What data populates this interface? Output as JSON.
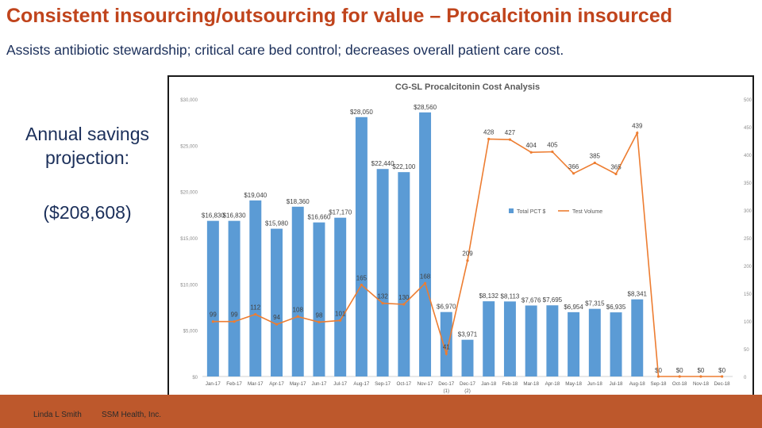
{
  "slide": {
    "title": "Consistent insourcing/outsourcing for value – Procalcitonin insourced",
    "subtitle": "Assists antibiotic stewardship; critical care bed control; decreases overall patient care cost.",
    "savings_label": "Annual savings projection:",
    "savings_value": "($208,608)",
    "footer_author": "Linda L Smith",
    "footer_org": "SSM Health, Inc.",
    "accent_color": "#c0441c",
    "footer_color": "#bd582c"
  },
  "chart_data": {
    "type": "bar",
    "title": "CG-SL Procalcitonin Cost Analysis",
    "categories": [
      "Jan-17",
      "Feb-17",
      "Mar-17",
      "Apr-17",
      "May-17",
      "Jun-17",
      "Jul-17",
      "Aug-17",
      "Sep-17",
      "Oct-17",
      "Nov-17",
      "Dec-17",
      "Dec-17",
      "Jan-18",
      "Feb-18",
      "Mar-18",
      "Apr-18",
      "May-18",
      "Jun-18",
      "Jul-18",
      "Aug-18",
      "Sep-18",
      "Oct-18",
      "Nov-18",
      "Dec-18"
    ],
    "category_notes": [
      "",
      "",
      "",
      "",
      "",
      "",
      "",
      "",
      "",
      "",
      "",
      "(1)",
      "(2)",
      "",
      "",
      "",
      "",
      "",
      "",
      "",
      "",
      "",
      "",
      "",
      ""
    ],
    "series": [
      {
        "name": "Total PCT $",
        "type": "bar",
        "axis": "left",
        "color": "#5b9bd5",
        "values": [
          16830,
          16830,
          19040,
          15980,
          18360,
          16660,
          17170,
          28050,
          22440,
          22100,
          28560,
          6970,
          3971,
          8132,
          8113,
          7676,
          7695,
          6954,
          7315,
          6935,
          8341,
          0,
          0,
          0,
          0
        ],
        "labels": [
          "$16,830",
          "$16,830",
          "$19,040",
          "$15,980",
          "$18,360",
          "$16,660",
          "$17,170",
          "$28,050",
          "$22,440",
          "$22,100",
          "$28,560",
          "$6,970",
          "$3,971",
          "$8,132",
          "$8,113",
          "$7,676",
          "$7,695",
          "$6,954",
          "$7,315",
          "$6,935",
          "$8,341",
          "$0",
          "$0",
          "$0",
          "$0"
        ]
      },
      {
        "name": "Test Volume",
        "type": "line",
        "axis": "right",
        "color": "#ed7d31",
        "values": [
          99,
          99,
          112,
          94,
          108,
          98,
          101,
          165,
          132,
          130,
          168,
          41,
          209,
          428,
          427,
          404,
          405,
          366,
          385,
          365,
          439,
          0,
          0,
          0,
          0
        ],
        "labels": [
          "99",
          "99",
          "112",
          "94",
          "108",
          "98",
          "101",
          "165",
          "132",
          "130",
          "168",
          "41",
          "209",
          "428",
          "427",
          "404",
          "405",
          "366",
          "385",
          "365",
          "439",
          "",
          "",
          "",
          ""
        ]
      }
    ],
    "y_left": {
      "min": 0,
      "max": 30000,
      "ticks": [
        0,
        5000,
        10000,
        15000,
        20000,
        25000,
        30000
      ],
      "tick_labels": [
        "$0",
        "$5,000",
        "$10,000",
        "$15,000",
        "$20,000",
        "$25,000",
        "$30,000"
      ]
    },
    "y_right": {
      "min": 0,
      "max": 500,
      "ticks": [
        0,
        50,
        100,
        150,
        200,
        250,
        300,
        350,
        400,
        450,
        500
      ],
      "tick_labels": [
        "0",
        "50",
        "100",
        "150",
        "200",
        "250",
        "300",
        "350",
        "400",
        "450",
        "500"
      ]
    },
    "legend_position": "right-middle",
    "grid": false
  }
}
